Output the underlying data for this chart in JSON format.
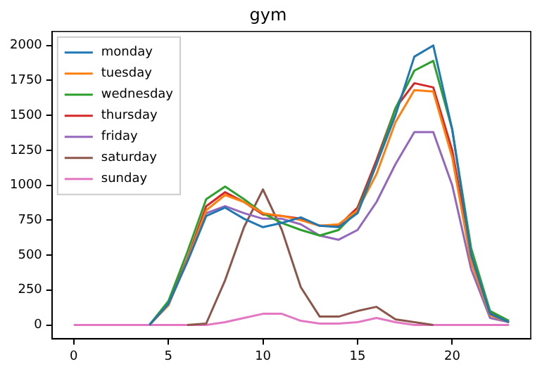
{
  "chart_data": {
    "type": "line",
    "title": "gym",
    "x": [
      0,
      1,
      2,
      3,
      4,
      5,
      6,
      7,
      8,
      9,
      10,
      11,
      12,
      13,
      14,
      15,
      16,
      17,
      18,
      19,
      20,
      21,
      22,
      23
    ],
    "xlim": [
      -1.15,
      24.15
    ],
    "xticks": [
      0,
      5,
      10,
      15,
      20
    ],
    "ylim": [
      -100,
      2100
    ],
    "yticks": [
      0,
      250,
      500,
      750,
      1000,
      1250,
      1500,
      1750,
      2000
    ],
    "grid": false,
    "legend": "top left",
    "marker": "none",
    "line_style": "solid",
    "series": [
      {
        "name": "monday",
        "color": "#1f77b4",
        "values": [
          null,
          null,
          null,
          null,
          0,
          150,
          450,
          780,
          840,
          760,
          700,
          730,
          770,
          710,
          700,
          800,
          1150,
          1500,
          1920,
          2000,
          1400,
          500,
          80,
          20
        ]
      },
      {
        "name": "tuesday",
        "color": "#ff7f0e",
        "values": [
          null,
          null,
          null,
          null,
          0,
          140,
          460,
          820,
          930,
          880,
          800,
          780,
          750,
          710,
          720,
          820,
          1080,
          1450,
          1680,
          1670,
          1200,
          450,
          70,
          20
        ]
      },
      {
        "name": "wednesday",
        "color": "#2ca02c",
        "values": [
          null,
          null,
          null,
          null,
          0,
          170,
          520,
          900,
          990,
          900,
          800,
          730,
          680,
          640,
          680,
          820,
          1150,
          1550,
          1820,
          1890,
          1400,
          550,
          100,
          30
        ]
      },
      {
        "name": "thursday",
        "color": "#d62728",
        "values": [
          null,
          null,
          null,
          null,
          0,
          150,
          470,
          850,
          950,
          880,
          790,
          780,
          760,
          710,
          710,
          840,
          1180,
          1550,
          1730,
          1700,
          1250,
          500,
          90,
          20
        ]
      },
      {
        "name": "friday",
        "color": "#9467bd",
        "values": [
          null,
          null,
          null,
          null,
          null,
          140,
          470,
          800,
          850,
          800,
          760,
          760,
          720,
          640,
          610,
          680,
          880,
          1150,
          1380,
          1380,
          1000,
          400,
          50,
          20
        ]
      },
      {
        "name": "saturday",
        "color": "#8c564b",
        "values": [
          null,
          null,
          null,
          null,
          null,
          null,
          0,
          10,
          320,
          700,
          970,
          680,
          270,
          60,
          60,
          100,
          130,
          40,
          20,
          0,
          null,
          null,
          null,
          null
        ]
      },
      {
        "name": "sunday",
        "color": "#e377c2",
        "values": [
          0,
          0,
          0,
          0,
          0,
          0,
          0,
          0,
          20,
          50,
          80,
          80,
          30,
          10,
          10,
          20,
          50,
          20,
          0,
          0,
          0,
          0,
          0,
          0
        ]
      }
    ]
  }
}
